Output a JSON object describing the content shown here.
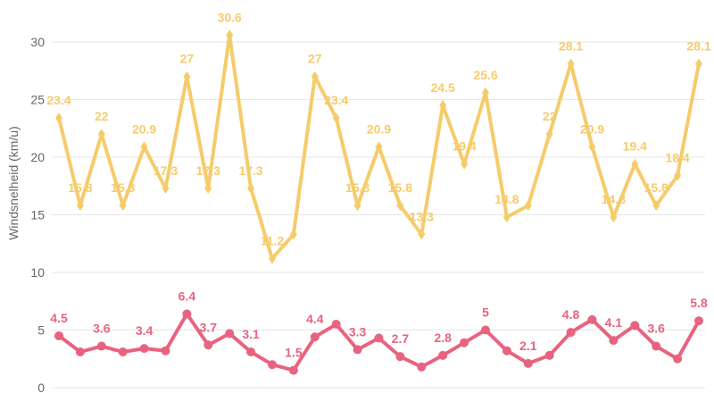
{
  "chart_data": {
    "type": "line",
    "ylabel": "Windsnelheid (km/u)",
    "ylim": [
      0,
      30
    ],
    "yticks": [
      0,
      5,
      10,
      15,
      20,
      25,
      30
    ],
    "grid": true,
    "series": [
      {
        "color": "#f5cc6b",
        "marker": "diamond",
        "values": [
          23.4,
          15.8,
          22,
          15.8,
          20.9,
          17.3,
          27,
          17.3,
          30.6,
          17.3,
          11.2,
          13.3,
          27,
          23.4,
          15.8,
          20.9,
          15.8,
          13.3,
          24.5,
          19.4,
          25.6,
          14.8,
          15.8,
          22,
          28.1,
          20.9,
          14.8,
          19.4,
          15.8,
          18.4,
          28.1
        ],
        "labels": [
          "23.4",
          "15.8",
          "22",
          "15.8",
          "20.9",
          "17.3",
          "27",
          "17.3",
          "30.6",
          "17.3",
          "11.2",
          "",
          "27",
          "23.4",
          "15.8",
          "20.9",
          "15.8",
          "13.3",
          "24.5",
          "19.4",
          "25.6",
          "14.8",
          "",
          "22",
          "28.1",
          "20.9",
          "14.8",
          "19.4",
          "15.8",
          "18.4",
          "28.1"
        ]
      },
      {
        "color": "#e8637f",
        "marker": "circle",
        "values": [
          4.5,
          3.1,
          3.6,
          3.1,
          3.4,
          3.2,
          6.4,
          3.7,
          4.7,
          3.1,
          2.0,
          1.5,
          4.4,
          5.5,
          3.3,
          4.3,
          2.7,
          1.8,
          2.8,
          3.9,
          5,
          3.2,
          2.1,
          2.8,
          4.8,
          5.9,
          4.1,
          5.4,
          3.6,
          2.5,
          5.8
        ],
        "labels": [
          "4.5",
          "",
          "3.6",
          "",
          "3.4",
          "",
          "6.4",
          "3.7",
          "",
          "3.1",
          "",
          "1.5",
          "4.4",
          "",
          "3.3",
          "",
          "2.7",
          "",
          "2.8",
          "",
          "5",
          "",
          "2.1",
          "",
          "4.8",
          "",
          "4.1",
          "",
          "3.6",
          "",
          "5.8"
        ]
      }
    ]
  }
}
